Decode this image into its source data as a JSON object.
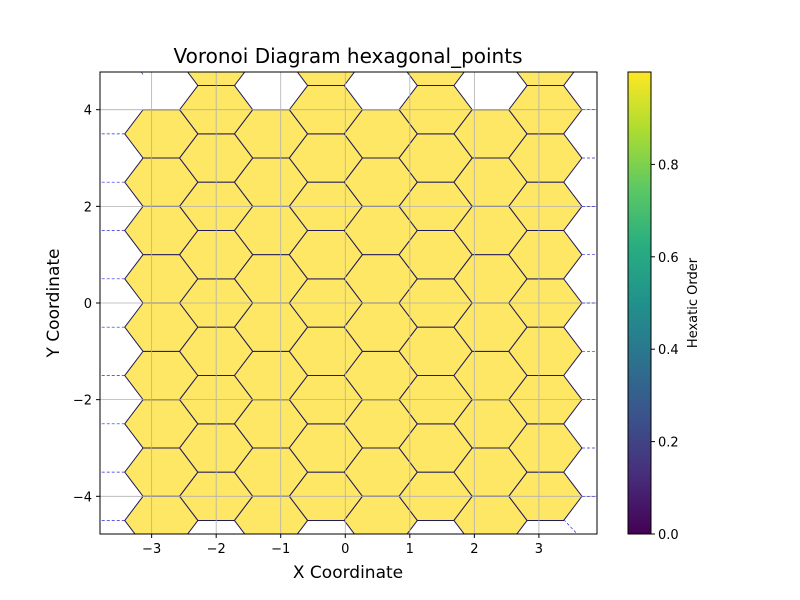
{
  "chart_data": {
    "type": "voronoi",
    "title": "Voronoi Diagram hexagonal_points",
    "xlabel": "X Coordinate",
    "ylabel": "Y Coordinate",
    "xlim": [
      -3.8,
      3.9
    ],
    "ylim": [
      -4.78,
      4.78
    ],
    "xticks": [
      -3,
      -2,
      -1,
      0,
      1,
      2,
      3
    ],
    "yticks": [
      -4,
      -2,
      0,
      2,
      4
    ],
    "grid": true,
    "lattice": {
      "columns_x": [
        -2.85,
        -2.0,
        -1.15,
        -0.3,
        0.55,
        1.4,
        2.25,
        3.1
      ],
      "row_spacing": 1.0,
      "even_column_y": [
        -4.5,
        -3.5,
        -2.5,
        -1.5,
        -0.5,
        0.5,
        1.5,
        2.5,
        3.5
      ],
      "odd_column_y": [
        -4.0,
        -3.0,
        -2.0,
        -1.0,
        0.0,
        1.0,
        2.0,
        3.0,
        4.0,
        5.0
      ]
    },
    "cell_value": 1.0,
    "cell_color": "#fde765",
    "edge_color": "#1f1a5c",
    "grid_color": "#b0b0b0",
    "colorbar": {
      "label": "Hexatic Order",
      "range": [
        0.0,
        1.0
      ],
      "ticks": [
        0.0,
        0.2,
        0.4,
        0.6,
        0.8
      ],
      "colormap": "viridis"
    }
  }
}
